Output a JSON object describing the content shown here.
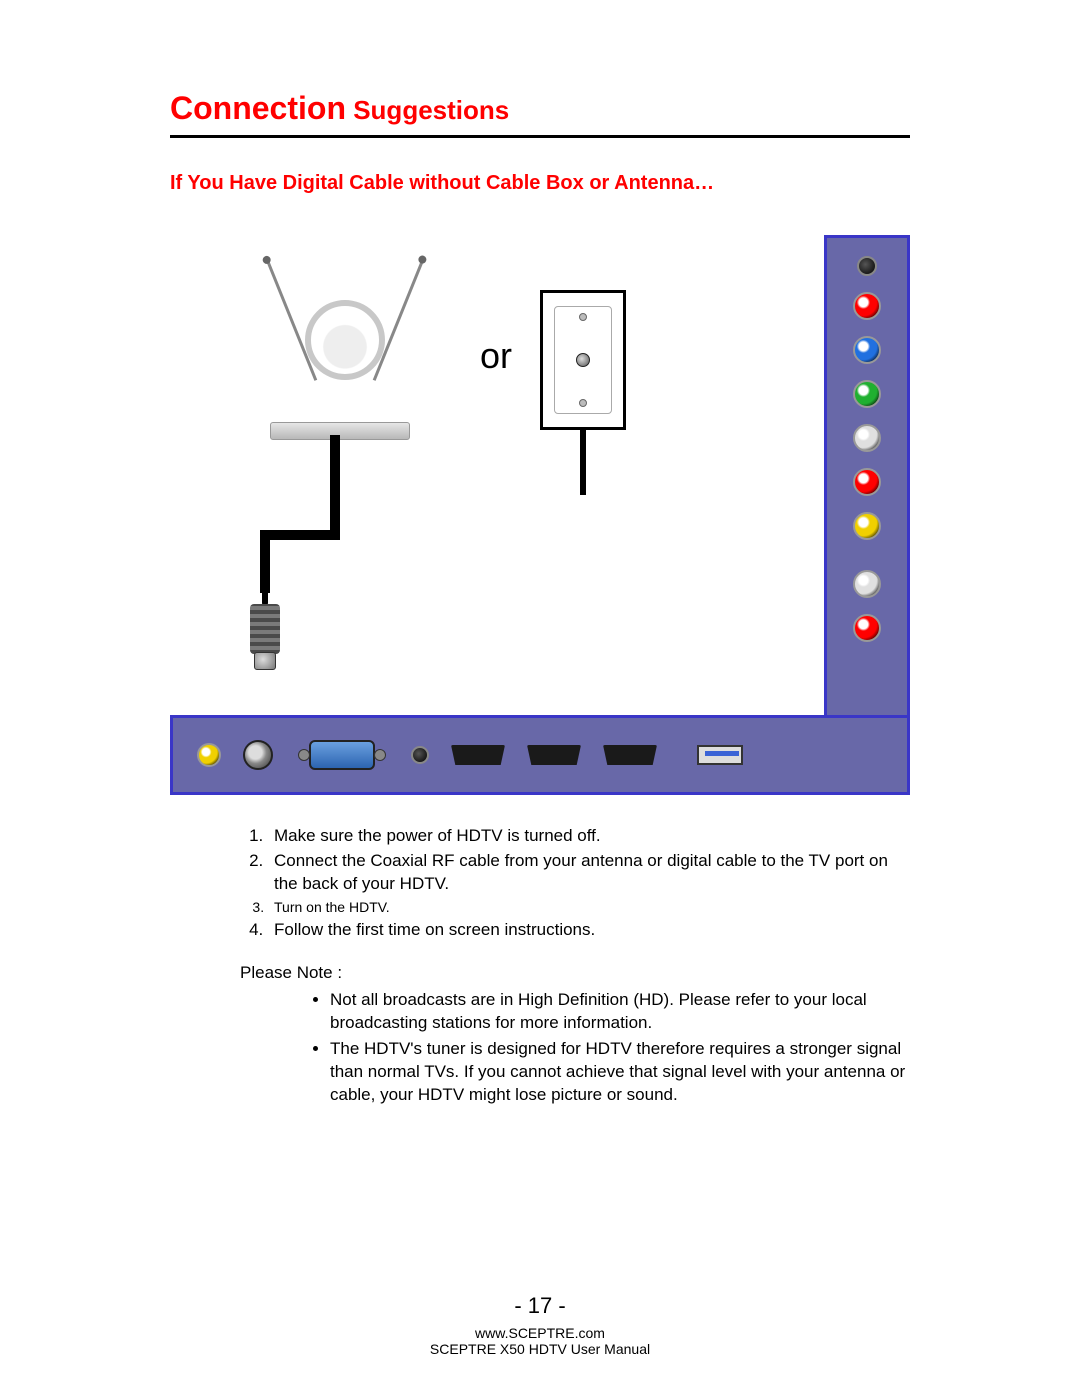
{
  "colors": {
    "accent_red": "#ff0000",
    "panel_fill": "#6868a8",
    "panel_border": "#3a36c7",
    "black": "#000000",
    "white": "#ffffff"
  },
  "heading": {
    "primary": "Connection",
    "secondary": " Suggestions"
  },
  "subheading": "If You Have Digital Cable without Cable Box or Antenna…",
  "diagram": {
    "or_label": "or",
    "vertical_ports": [
      {
        "type": "jack-small",
        "color": "#000000"
      },
      {
        "type": "rca",
        "color": "#ff0000"
      },
      {
        "type": "rca",
        "color": "#2070e0"
      },
      {
        "type": "rca",
        "color": "#20b030"
      },
      {
        "type": "rca",
        "color": "#e0e0e0"
      },
      {
        "type": "rca",
        "color": "#ff0000"
      },
      {
        "type": "rca",
        "color": "#f0d000"
      },
      {
        "type": "rca",
        "color": "#e0e0e0"
      },
      {
        "type": "rca",
        "color": "#ff0000"
      }
    ],
    "horizontal_ports": [
      "rca-yellow",
      "coax",
      "vga",
      "mini-jack",
      "hdmi",
      "hdmi",
      "hdmi",
      "usb"
    ]
  },
  "instructions": {
    "ordered": [
      "Make sure the power of HDTV is turned off.",
      "Connect the Coaxial RF cable from your antenna or digital cable to the TV port on the back of your HDTV.",
      "Turn on the HDTV.",
      "Follow the first time on screen instructions."
    ],
    "please_note_label": "Please Note :",
    "notes": [
      "Not all broadcasts are in High Definition (HD).  Please refer to your local broadcasting stations for more information.",
      "The HDTV's tuner is designed for HDTV therefore requires a stronger signal than normal TVs.  If you cannot achieve that signal level with your antenna or cable, your HDTV might lose picture or sound."
    ]
  },
  "footer": {
    "page_number": "- 17 -",
    "url": "www.SCEPTRE.com",
    "manual": "SCEPTRE X50 HDTV User Manual"
  }
}
